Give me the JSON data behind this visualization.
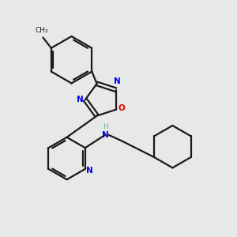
{
  "background_color": "#e8e8e8",
  "bond_color": "#1a1a1a",
  "N_color": "#0000ee",
  "O_color": "#dd0000",
  "H_color": "#5aacac",
  "figsize": [
    3.0,
    3.0
  ],
  "dpi": 100,
  "xlim": [
    0,
    10
  ],
  "ylim": [
    0,
    10
  ]
}
